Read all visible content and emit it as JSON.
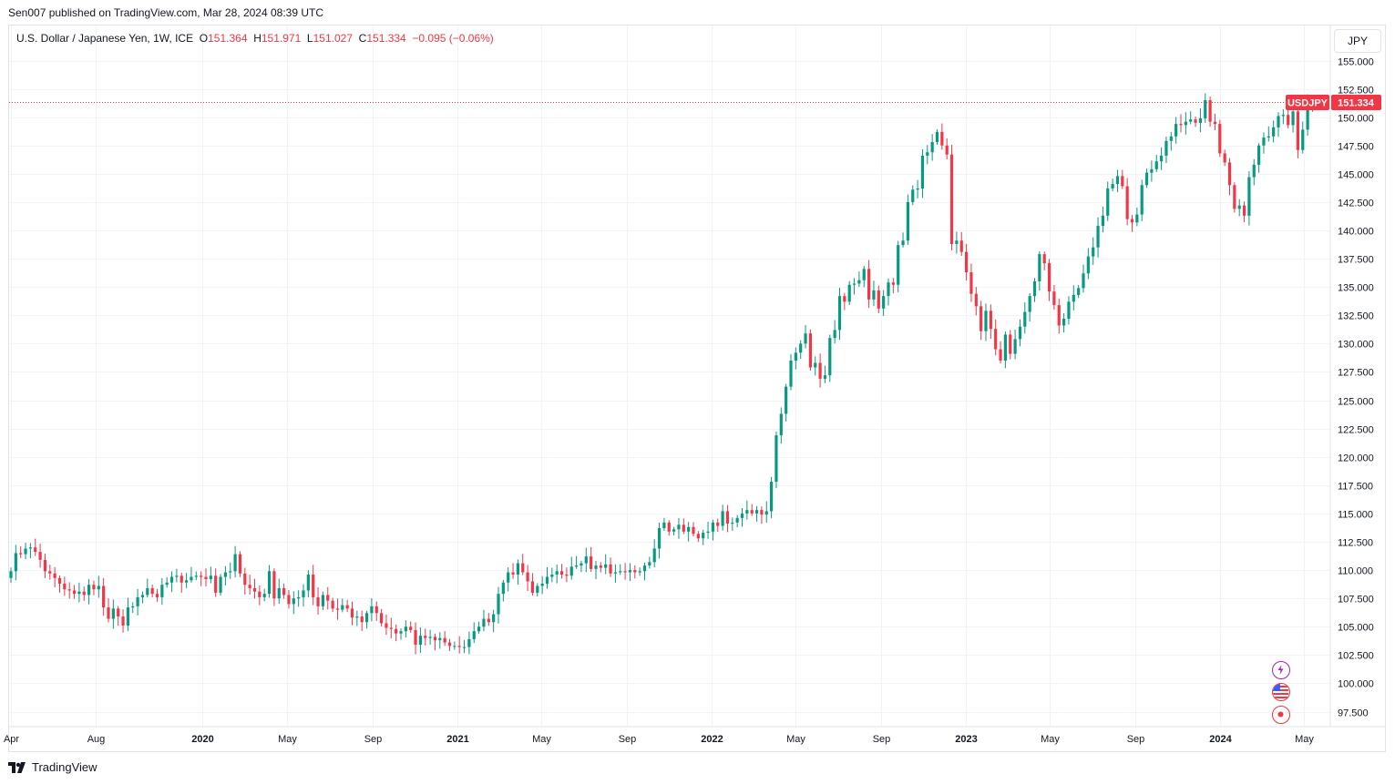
{
  "header": {
    "publish_text": "Sen007 published on TradingView.com, Mar 28, 2024 08:39 UTC"
  },
  "legend": {
    "symbol": "U.S. Dollar / Japanese Yen, 1W, ICE",
    "o_label": "O",
    "o_value": "151.364",
    "h_label": "H",
    "h_value": "151.971",
    "l_label": "L",
    "l_value": "151.027",
    "c_label": "C",
    "c_value": "151.334",
    "change": "−0.095 (−0.06%)"
  },
  "currency_button": "JPY",
  "price_tag": {
    "symbol": "USDJPY",
    "value": "151.334"
  },
  "footer": {
    "brand": "TradingView"
  },
  "colors": {
    "up": "#089981",
    "down": "#f23645",
    "grid": "#f0f3fa",
    "text": "#131722"
  },
  "icons": [
    "lightning-icon",
    "us-flag-icon",
    "record-event-icon"
  ],
  "chart_data": {
    "type": "candlestick",
    "title": "U.S. Dollar / Japanese Yen, 1W, ICE",
    "ylim": [
      96.5,
      157
    ],
    "y_ticks": [
      "155.000",
      "152.500",
      "150.000",
      "147.500",
      "145.000",
      "142.500",
      "140.000",
      "137.500",
      "135.000",
      "132.500",
      "130.000",
      "127.500",
      "125.000",
      "122.500",
      "120.000",
      "117.500",
      "115.000",
      "112.500",
      "110.000",
      "107.500",
      "105.000",
      "102.500",
      "100.000",
      "97.500"
    ],
    "x_ticks": [
      {
        "label": "Apr",
        "date": "2019-04-01",
        "bold": false
      },
      {
        "label": "Aug",
        "date": "2019-08-01",
        "bold": false
      },
      {
        "label": "2020",
        "date": "2020-01-01",
        "bold": true
      },
      {
        "label": "May",
        "date": "2020-05-01",
        "bold": false
      },
      {
        "label": "Sep",
        "date": "2020-09-01",
        "bold": false
      },
      {
        "label": "2021",
        "date": "2021-01-01",
        "bold": true
      },
      {
        "label": "May",
        "date": "2021-05-01",
        "bold": false
      },
      {
        "label": "Sep",
        "date": "2021-09-01",
        "bold": false
      },
      {
        "label": "2022",
        "date": "2022-01-01",
        "bold": true
      },
      {
        "label": "May",
        "date": "2022-05-01",
        "bold": false
      },
      {
        "label": "Sep",
        "date": "2022-09-01",
        "bold": false
      },
      {
        "label": "2023",
        "date": "2023-01-01",
        "bold": true
      },
      {
        "label": "May",
        "date": "2023-05-01",
        "bold": false
      },
      {
        "label": "Sep",
        "date": "2023-09-01",
        "bold": false
      },
      {
        "label": "2024",
        "date": "2024-01-01",
        "bold": true
      },
      {
        "label": "May",
        "date": "2024-05-01",
        "bold": false
      }
    ],
    "first_week": "2019-04-01",
    "last_close": 151.334,
    "weekly_closes": [
      109.9,
      111.5,
      111.4,
      111.9,
      112.0,
      111.6,
      110.9,
      109.9,
      109.7,
      109.3,
      108.8,
      108.3,
      108.2,
      107.9,
      108.1,
      107.8,
      108.7,
      108.3,
      108.6,
      106.7,
      105.7,
      106.6,
      105.9,
      105.1,
      106.7,
      106.8,
      107.6,
      107.8,
      108.4,
      107.9,
      107.6,
      108.7,
      108.9,
      109.4,
      109.5,
      108.9,
      109.1,
      109.4,
      109.5,
      109.4,
      109.2,
      109.5,
      108.0,
      109.4,
      109.8,
      109.9,
      111.4,
      109.7,
      108.7,
      108.4,
      108.1,
      107.6,
      107.9,
      109.9,
      107.5,
      108.4,
      107.8,
      107.0,
      107.5,
      107.6,
      108.2,
      109.6,
      107.6,
      106.8,
      107.8,
      107.3,
      106.6,
      106.5,
      106.9,
      106.6,
      105.8,
      105.9,
      105.4,
      106.2,
      106.8,
      106.2,
      105.3,
      104.9,
      104.8,
      104.4,
      104.6,
      105.0,
      104.7,
      103.4,
      104.2,
      104.0,
      104.1,
      103.8,
      104.0,
      103.6,
      103.3,
      103.3,
      103.2,
      103.2,
      103.9,
      104.6,
      105.0,
      105.7,
      105.4,
      106.1,
      107.9,
      108.9,
      109.8,
      109.6,
      110.6,
      109.8,
      109.0,
      108.0,
      108.6,
      108.8,
      109.4,
      109.6,
      109.9,
      109.6,
      109.5,
      110.3,
      110.4,
      110.6,
      111.2,
      110.1,
      110.4,
      110.2,
      110.5,
      109.7,
      109.8,
      109.9,
      109.8,
      110.0,
      109.8,
      109.9,
      110.4,
      110.7,
      111.9,
      113.7,
      114.2,
      113.4,
      113.6,
      114.0,
      113.4,
      113.8,
      113.2,
      112.8,
      113.3,
      113.4,
      114.2,
      113.9,
      115.2,
      114.1,
      114.2,
      114.6,
      115.0,
      115.3,
      115.0,
      115.3,
      114.9,
      115.2,
      117.8,
      121.9,
      123.8,
      126.2,
      128.5,
      129.2,
      130.0,
      130.9,
      127.9,
      128.3,
      126.9,
      127.2,
      130.5,
      131.2,
      134.2,
      133.7,
      135.2,
      135.3,
      135.6,
      136.6,
      133.9,
      134.7,
      133.1,
      134.2,
      135.4,
      135.2,
      138.7,
      139.1,
      142.5,
      143.6,
      143.7,
      146.6,
      146.9,
      147.8,
      148.7,
      147.5,
      146.7,
      138.8,
      139.1,
      138.1,
      136.3,
      134.4,
      133.3,
      131.1,
      132.9,
      131.3,
      129.5,
      128.5,
      130.8,
      129.1,
      130.4,
      131.5,
      132.8,
      134.2,
      135.5,
      137.9,
      137.1,
      134.6,
      133.4,
      131.6,
      132.2,
      133.7,
      134.3,
      134.9,
      136.2,
      137.7,
      138.5,
      140.4,
      141.3,
      143.7,
      144.1,
      144.8,
      143.9,
      141.0,
      140.7,
      141.4,
      144.0,
      145.1,
      145.4,
      146.1,
      146.6,
      147.9,
      148.3,
      149.4,
      149.3,
      149.6,
      149.8,
      149.5,
      149.9,
      151.5,
      149.6,
      149.4,
      146.8,
      146.0,
      144.0,
      141.9,
      142.2,
      141.3,
      144.7,
      145.8,
      147.5,
      148.2,
      148.3,
      149.1,
      150.1,
      150.2,
      149.3,
      150.5,
      147.1,
      148.9,
      151.4,
      151.3
    ],
    "y_axis_currency": "JPY"
  }
}
